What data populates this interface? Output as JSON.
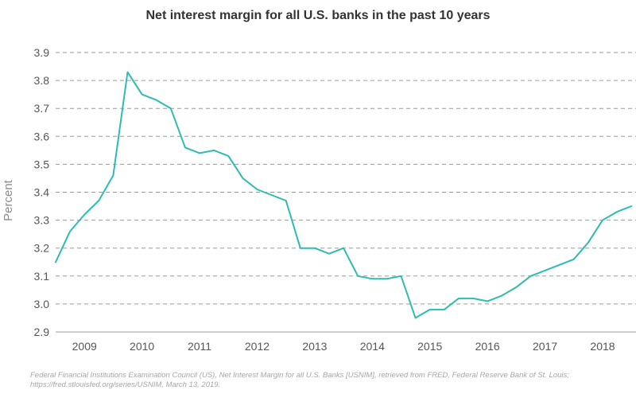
{
  "chart_data": {
    "type": "line",
    "title": "Net interest margin for all U.S. banks in the past 10 years",
    "ylabel": "Percent",
    "xlabel": "",
    "xlim": [
      2008.75,
      2018.83
    ],
    "ylim": [
      2.9,
      3.9
    ],
    "yticks": [
      "2.9",
      "3.0",
      "3.1",
      "3.2",
      "3.3",
      "3.4",
      "3.5",
      "3.6",
      "3.7",
      "3.8",
      "3.9"
    ],
    "xticks": [
      "2009",
      "2010",
      "2011",
      "2012",
      "2013",
      "2014",
      "2015",
      "2016",
      "2017",
      "2018"
    ],
    "grid": true,
    "series": [
      {
        "color": "#2ebcb0",
        "x": [
          "2008-10-01",
          "2009-01-01",
          "2009-04-01",
          "2009-07-01",
          "2009-10-01",
          "2010-01-01",
          "2010-04-01",
          "2010-07-01",
          "2010-10-01",
          "2011-01-01",
          "2011-04-01",
          "2011-07-01",
          "2011-10-01",
          "2012-01-01",
          "2012-04-01",
          "2012-07-01",
          "2012-10-01",
          "2013-01-01",
          "2013-04-01",
          "2013-07-01",
          "2013-10-01",
          "2014-01-01",
          "2014-04-01",
          "2014-07-01",
          "2014-10-01",
          "2015-01-01",
          "2015-04-01",
          "2015-07-01",
          "2015-10-01",
          "2016-01-01",
          "2016-04-01",
          "2016-07-01",
          "2016-10-01",
          "2017-01-01",
          "2017-04-01",
          "2017-07-01",
          "2017-10-01",
          "2018-01-01",
          "2018-04-01",
          "2018-07-01",
          "2018-10-01"
        ],
        "y": [
          3.15,
          3.26,
          3.32,
          3.37,
          3.46,
          3.83,
          3.75,
          3.73,
          3.7,
          3.56,
          3.54,
          3.55,
          3.53,
          3.45,
          3.41,
          3.39,
          3.37,
          3.2,
          3.2,
          3.18,
          3.2,
          3.1,
          3.09,
          3.09,
          3.1,
          2.95,
          2.98,
          2.98,
          3.02,
          3.02,
          3.01,
          3.03,
          3.06,
          3.1,
          3.12,
          3.14,
          3.16,
          3.22,
          3.3,
          3.33,
          3.35
        ]
      }
    ]
  },
  "source": {
    "line1": "Federal Financial Institutions Examination Council (US), Net Interest Margin for all U.S. Banks [USNIM], retrieved from FRED, Federal Reserve Bank of St. Louis;",
    "line2": "https://fred.stlouisfed.org/series/USNIM, March 13, 2019."
  }
}
